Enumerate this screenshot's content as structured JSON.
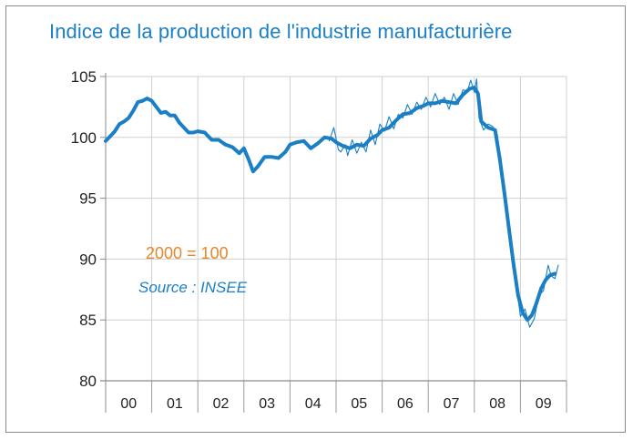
{
  "chart_data": {
    "type": "line",
    "title": "Indice de la production de l'industrie manufacturière",
    "annotations": {
      "base": "2000 = 100",
      "source": "Source : INSEE"
    },
    "xlabel": "",
    "ylabel": "",
    "x_categories": [
      "00",
      "01",
      "02",
      "03",
      "04",
      "05",
      "06",
      "07",
      "08",
      "09"
    ],
    "ylim": [
      80,
      105
    ],
    "yticks": [
      "80",
      "85",
      "90",
      "95",
      "100",
      "105"
    ],
    "grid": true,
    "colors": {
      "series": "#1a7fc4",
      "title": "#1a7fc4",
      "base_note": "#e8862a",
      "grid": "#cfcfcf"
    },
    "series": [
      {
        "style": "thick",
        "points": [
          [
            2000.0,
            99.7
          ],
          [
            2000.1,
            100.1
          ],
          [
            2000.2,
            100.5
          ],
          [
            2000.3,
            101.1
          ],
          [
            2000.4,
            101.3
          ],
          [
            2000.5,
            101.6
          ],
          [
            2000.6,
            102.2
          ],
          [
            2000.7,
            102.9
          ],
          [
            2000.8,
            103.0
          ],
          [
            2000.9,
            103.2
          ],
          [
            2001.0,
            103.0
          ],
          [
            2001.1,
            102.5
          ],
          [
            2001.2,
            102.0
          ],
          [
            2001.3,
            102.1
          ],
          [
            2001.4,
            101.8
          ],
          [
            2001.5,
            101.8
          ],
          [
            2001.6,
            101.2
          ],
          [
            2001.7,
            100.8
          ],
          [
            2001.8,
            100.4
          ],
          [
            2001.9,
            100.4
          ],
          [
            2002.0,
            100.5
          ],
          [
            2002.15,
            100.4
          ],
          [
            2002.3,
            99.8
          ],
          [
            2002.45,
            99.8
          ],
          [
            2002.6,
            99.4
          ],
          [
            2002.75,
            99.2
          ],
          [
            2002.9,
            98.7
          ],
          [
            2003.0,
            99.1
          ],
          [
            2003.1,
            98.2
          ],
          [
            2003.2,
            97.2
          ],
          [
            2003.3,
            97.6
          ],
          [
            2003.45,
            98.4
          ],
          [
            2003.6,
            98.4
          ],
          [
            2003.75,
            98.3
          ],
          [
            2003.9,
            98.8
          ],
          [
            2004.0,
            99.4
          ],
          [
            2004.15,
            99.6
          ],
          [
            2004.3,
            99.7
          ],
          [
            2004.45,
            99.1
          ],
          [
            2004.6,
            99.5
          ],
          [
            2004.75,
            100.0
          ],
          [
            2004.9,
            99.9
          ],
          [
            2005.0,
            99.6
          ],
          [
            2005.15,
            99.3
          ],
          [
            2005.3,
            99.1
          ],
          [
            2005.45,
            99.4
          ],
          [
            2005.6,
            99.3
          ],
          [
            2005.75,
            99.9
          ],
          [
            2005.9,
            100.2
          ],
          [
            2006.0,
            100.6
          ],
          [
            2006.15,
            100.8
          ],
          [
            2006.3,
            101.4
          ],
          [
            2006.45,
            101.9
          ],
          [
            2006.6,
            102.0
          ],
          [
            2006.75,
            102.4
          ],
          [
            2006.9,
            102.6
          ],
          [
            2007.0,
            102.8
          ],
          [
            2007.15,
            102.8
          ],
          [
            2007.3,
            103.0
          ],
          [
            2007.45,
            102.9
          ],
          [
            2007.6,
            102.8
          ],
          [
            2007.75,
            103.5
          ],
          [
            2007.9,
            104.0
          ],
          [
            2008.0,
            104.1
          ],
          [
            2008.08,
            103.6
          ],
          [
            2008.15,
            101.3
          ],
          [
            2008.3,
            100.8
          ],
          [
            2008.45,
            100.6
          ],
          [
            2008.55,
            98.3
          ],
          [
            2008.65,
            95.5
          ],
          [
            2008.75,
            92.5
          ],
          [
            2008.85,
            89.6
          ],
          [
            2008.95,
            87.0
          ],
          [
            2009.05,
            85.6
          ],
          [
            2009.15,
            85.0
          ],
          [
            2009.25,
            85.4
          ],
          [
            2009.35,
            86.4
          ],
          [
            2009.45,
            87.6
          ],
          [
            2009.55,
            88.3
          ],
          [
            2009.65,
            88.7
          ],
          [
            2009.75,
            88.8
          ]
        ]
      },
      {
        "style": "thin",
        "points": [
          [
            2004.85,
            99.7
          ],
          [
            2004.95,
            100.8
          ],
          [
            2005.05,
            99.0
          ],
          [
            2005.1,
            98.8
          ],
          [
            2005.2,
            99.4
          ],
          [
            2005.25,
            98.5
          ],
          [
            2005.35,
            99.8
          ],
          [
            2005.45,
            98.7
          ],
          [
            2005.55,
            99.6
          ],
          [
            2005.65,
            98.8
          ],
          [
            2005.75,
            100.6
          ],
          [
            2005.85,
            99.4
          ],
          [
            2005.95,
            101.1
          ],
          [
            2006.05,
            100.5
          ],
          [
            2006.15,
            101.7
          ],
          [
            2006.25,
            100.7
          ],
          [
            2006.35,
            101.9
          ],
          [
            2006.45,
            101.6
          ],
          [
            2006.55,
            102.7
          ],
          [
            2006.65,
            101.9
          ],
          [
            2006.75,
            102.9
          ],
          [
            2006.85,
            102.3
          ],
          [
            2006.95,
            103.3
          ],
          [
            2007.05,
            102.5
          ],
          [
            2007.15,
            103.6
          ],
          [
            2007.25,
            102.7
          ],
          [
            2007.35,
            103.3
          ],
          [
            2007.45,
            102.3
          ],
          [
            2007.55,
            103.6
          ],
          [
            2007.65,
            102.7
          ],
          [
            2007.75,
            103.9
          ],
          [
            2007.85,
            103.8
          ],
          [
            2007.92,
            104.7
          ],
          [
            2008.0,
            103.7
          ],
          [
            2008.05,
            104.8
          ],
          [
            2008.1,
            101.6
          ],
          [
            2008.2,
            100.6
          ],
          [
            2008.3,
            101.1
          ],
          [
            2008.4,
            100.9
          ],
          [
            2008.5,
            100.2
          ],
          [
            2008.6,
            97.0
          ],
          [
            2008.7,
            93.5
          ],
          [
            2008.8,
            90.4
          ],
          [
            2008.9,
            88.2
          ],
          [
            2009.0,
            85.3
          ],
          [
            2009.1,
            85.9
          ],
          [
            2009.2,
            84.4
          ],
          [
            2009.3,
            85.1
          ],
          [
            2009.4,
            87.0
          ],
          [
            2009.5,
            87.4
          ],
          [
            2009.6,
            89.5
          ],
          [
            2009.67,
            88.6
          ],
          [
            2009.75,
            88.4
          ],
          [
            2009.82,
            89.5
          ]
        ]
      }
    ]
  }
}
